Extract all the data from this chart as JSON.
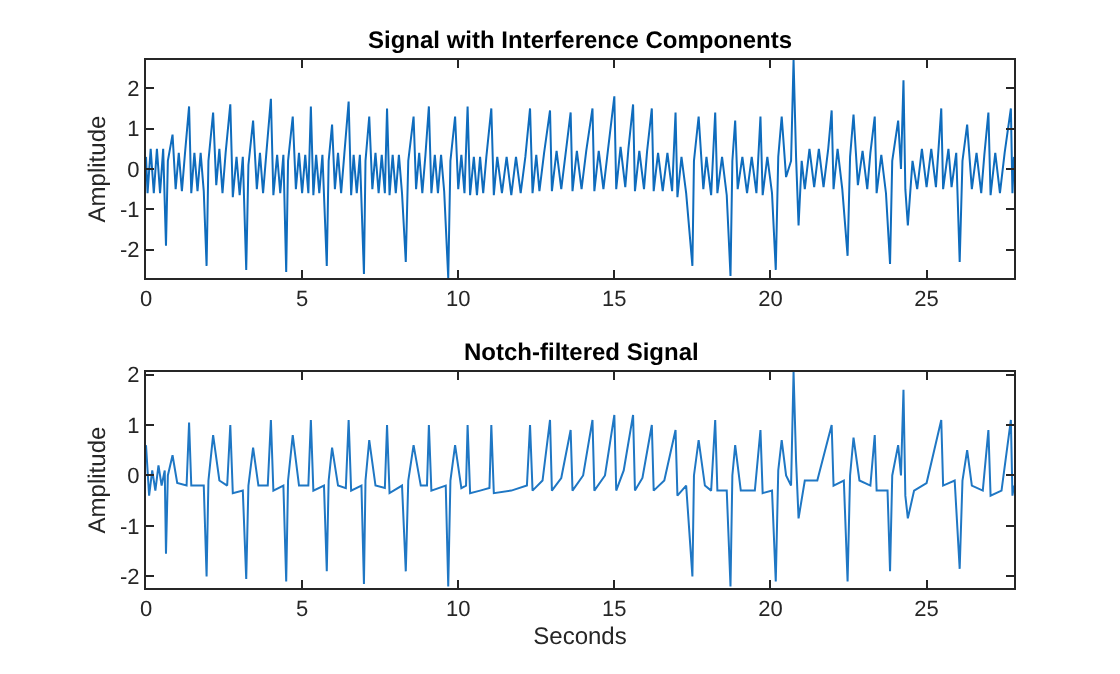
{
  "chart_data": [
    {
      "type": "line",
      "title": "Signal with Interference Components",
      "ylabel": "Amplitude",
      "xlim": [
        0,
        27.8
      ],
      "ylim": [
        -2.7,
        2.7
      ],
      "xticks": [
        0,
        5,
        10,
        15,
        20,
        25
      ],
      "yticks": [
        -2,
        -1,
        0,
        1,
        2
      ],
      "series": [
        {
          "color": "#0f6cbd",
          "x": [
            0,
            0.05,
            0.15,
            0.25,
            0.35,
            0.45,
            0.55,
            0.64,
            0.7,
            0.85,
            0.95,
            1.05,
            1.15,
            1.25,
            1.38,
            1.45,
            1.55,
            1.65,
            1.75,
            1.85,
            1.94,
            2.0,
            2.15,
            2.25,
            2.35,
            2.45,
            2.55,
            2.7,
            2.78,
            2.9,
            3.0,
            3.1,
            3.21,
            3.28,
            3.43,
            3.55,
            3.65,
            3.75,
            3.85,
            4.0,
            4.08,
            4.2,
            4.3,
            4.4,
            4.49,
            4.55,
            4.7,
            4.8,
            4.9,
            5.0,
            5.1,
            5.2,
            5.28,
            5.36,
            5.45,
            5.55,
            5.65,
            5.79,
            5.85,
            5.96,
            6.05,
            6.15,
            6.25,
            6.35,
            6.49,
            6.57,
            6.65,
            6.75,
            6.85,
            6.98,
            7.03,
            7.15,
            7.25,
            7.35,
            7.45,
            7.55,
            7.65,
            7.72,
            7.8,
            7.9,
            8.0,
            8.1,
            8.2,
            8.32,
            8.4,
            8.57,
            8.65,
            8.75,
            8.85,
            8.95,
            9.06,
            9.14,
            9.25,
            9.35,
            9.45,
            9.55,
            9.68,
            9.75,
            9.9,
            10.0,
            10.1,
            10.2,
            10.3,
            10.38,
            10.5,
            10.6,
            10.7,
            10.8,
            10.9,
            11.06,
            11.14,
            11.25,
            11.4,
            11.55,
            11.7,
            11.85,
            12.0,
            12.15,
            12.3,
            12.38,
            12.5,
            12.6,
            12.75,
            12.94,
            13.0,
            13.15,
            13.3,
            13.45,
            13.6,
            13.66,
            13.8,
            13.95,
            14.1,
            14.3,
            14.36,
            14.5,
            14.65,
            14.8,
            15.0,
            15.06,
            15.2,
            15.35,
            15.45,
            15.6,
            15.66,
            15.8,
            15.95,
            16.05,
            16.2,
            16.26,
            16.4,
            16.55,
            16.7,
            16.85,
            16.96,
            17.02,
            17.15,
            17.3,
            17.5,
            17.55,
            17.7,
            17.85,
            17.95,
            18.1,
            18.23,
            18.3,
            18.45,
            18.6,
            18.72,
            18.78,
            18.87,
            18.95,
            19.1,
            19.25,
            19.4,
            19.55,
            19.68,
            19.75,
            19.9,
            20.05,
            20.17,
            20.25,
            20.36,
            20.5,
            20.66,
            20.74,
            20.82,
            20.9,
            21.0,
            21.1,
            21.25,
            21.4,
            21.55,
            21.7,
            21.85,
            21.96,
            22.02,
            22.15,
            22.3,
            22.47,
            22.55,
            22.66,
            22.8,
            22.95,
            23.1,
            23.2,
            23.34,
            23.4,
            23.55,
            23.7,
            23.83,
            23.9,
            24.09,
            24.18,
            24.26,
            24.32,
            24.4,
            24.55,
            24.7,
            24.85,
            25.0,
            25.15,
            25.3,
            25.47,
            25.53,
            25.7,
            25.8,
            25.95,
            26.06,
            26.15,
            26.3,
            26.45,
            26.6,
            26.75,
            26.85,
            26.98,
            27.05,
            27.2,
            27.35,
            27.5,
            27.7,
            27.75,
            27.8
          ],
          "values": [
            0.3,
            -0.6,
            0.5,
            -0.6,
            0.5,
            -0.6,
            0.5,
            -1.9,
            0.2,
            0.85,
            -0.5,
            0.4,
            -0.55,
            0.4,
            1.55,
            -0.6,
            0.4,
            -0.55,
            0.4,
            -0.55,
            -2.4,
            0.2,
            1.4,
            -0.4,
            0.5,
            -0.6,
            0.4,
            1.6,
            -0.7,
            0.3,
            -0.65,
            0.3,
            -2.5,
            0.1,
            1.2,
            -0.5,
            0.4,
            -0.6,
            0.35,
            1.74,
            -0.65,
            0.35,
            -0.6,
            0.35,
            -2.55,
            0.2,
            1.3,
            -0.5,
            0.4,
            -0.6,
            0.35,
            -0.6,
            1.55,
            -0.65,
            0.35,
            -0.6,
            0.35,
            -2.4,
            0.2,
            1.1,
            -0.5,
            0.4,
            -0.6,
            0.35,
            1.67,
            -0.65,
            0.35,
            -0.6,
            0.35,
            -2.6,
            0.2,
            1.3,
            -0.5,
            0.4,
            -0.6,
            0.35,
            -0.6,
            1.5,
            -0.65,
            0.35,
            -0.6,
            0.35,
            -0.6,
            -2.3,
            0.2,
            1.3,
            -0.5,
            0.4,
            -0.6,
            0.35,
            1.55,
            -0.6,
            0.35,
            -0.6,
            0.35,
            -0.55,
            -2.7,
            0.2,
            1.3,
            -0.5,
            0.35,
            -0.6,
            1.55,
            -0.65,
            0.3,
            -0.65,
            0.3,
            -0.6,
            0.3,
            1.5,
            -0.65,
            0.3,
            -0.6,
            0.3,
            -0.65,
            0.3,
            -0.6,
            0.3,
            1.5,
            -0.6,
            0.35,
            -0.55,
            0.4,
            1.45,
            -0.55,
            0.45,
            -0.5,
            0.45,
            1.4,
            -0.55,
            0.45,
            -0.5,
            0.45,
            1.5,
            -0.55,
            0.45,
            -0.5,
            0.5,
            1.8,
            -0.5,
            0.55,
            -0.45,
            0.5,
            1.6,
            -0.55,
            0.45,
            -0.5,
            0.45,
            1.5,
            -0.55,
            0.4,
            -0.55,
            0.4,
            -0.55,
            1.4,
            -0.7,
            0.3,
            -0.6,
            -2.4,
            0.2,
            1.3,
            -0.5,
            0.3,
            -0.65,
            1.4,
            -0.6,
            0.3,
            -0.65,
            -2.65,
            0.2,
            1.2,
            -0.5,
            0.3,
            -0.6,
            0.3,
            -0.6,
            1.3,
            -0.65,
            0.3,
            -0.6,
            -2.5,
            0.3,
            1.3,
            -0.2,
            0.2,
            2.7,
            0.3,
            -1.4,
            0.2,
            -0.5,
            0.5,
            -0.45,
            0.5,
            -0.45,
            0.5,
            1.45,
            -0.5,
            0.5,
            -0.5,
            -2.15,
            0.3,
            1.35,
            -0.4,
            0.45,
            -0.5,
            0.4,
            1.3,
            -0.6,
            0.35,
            -0.6,
            -2.35,
            0.2,
            1.2,
            0.0,
            2.2,
            -0.5,
            -1.4,
            0.2,
            -0.5,
            0.5,
            -0.45,
            0.5,
            -0.45,
            1.5,
            -0.5,
            0.5,
            -0.45,
            0.4,
            -2.3,
            0.2,
            1.1,
            -0.5,
            0.4,
            -0.6,
            0.35,
            1.4,
            -0.65,
            0.4,
            -0.6,
            0.4,
            1.5,
            -0.6,
            0.3
          ]
        }
      ]
    },
    {
      "type": "line",
      "title": "Notch-filtered Signal",
      "xlabel": "Seconds",
      "ylabel": "Amplitude",
      "xlim": [
        0,
        27.8
      ],
      "ylim": [
        -2.23,
        2.05
      ],
      "xticks": [
        0,
        5,
        10,
        15,
        20,
        25
      ],
      "yticks": [
        -2,
        -1,
        0,
        1,
        2
      ],
      "series": [
        {
          "color": "#1f77c4",
          "x": [
            0,
            0.1,
            0.2,
            0.3,
            0.4,
            0.5,
            0.6,
            0.64,
            0.7,
            0.85,
            1.0,
            1.3,
            1.38,
            1.45,
            1.85,
            1.94,
            2.0,
            2.15,
            2.35,
            2.6,
            2.7,
            2.78,
            3.1,
            3.21,
            3.28,
            3.43,
            3.6,
            3.9,
            4.0,
            4.08,
            4.4,
            4.49,
            4.55,
            4.7,
            4.9,
            5.2,
            5.28,
            5.36,
            5.7,
            5.79,
            5.85,
            5.96,
            6.15,
            6.4,
            6.49,
            6.57,
            6.9,
            6.98,
            7.03,
            7.15,
            7.35,
            7.65,
            7.72,
            7.8,
            8.2,
            8.32,
            8.4,
            8.57,
            8.8,
            9.0,
            9.06,
            9.14,
            9.6,
            9.68,
            9.75,
            9.9,
            10.1,
            10.25,
            10.3,
            10.38,
            10.7,
            11.0,
            11.06,
            11.14,
            11.7,
            12.2,
            12.3,
            12.38,
            12.7,
            12.94,
            13.0,
            13.3,
            13.6,
            13.66,
            14.0,
            14.3,
            14.36,
            14.7,
            15.0,
            15.06,
            15.3,
            15.6,
            15.66,
            15.9,
            16.2,
            16.26,
            16.6,
            16.96,
            17.02,
            17.3,
            17.5,
            17.55,
            17.7,
            17.9,
            18.1,
            18.23,
            18.3,
            18.6,
            18.72,
            18.78,
            18.87,
            19.05,
            19.5,
            19.68,
            19.75,
            20.05,
            20.17,
            20.25,
            20.36,
            20.5,
            20.66,
            20.74,
            20.82,
            20.9,
            21.1,
            21.5,
            21.96,
            22.02,
            22.35,
            22.47,
            22.55,
            22.66,
            22.85,
            23.2,
            23.34,
            23.4,
            23.75,
            23.83,
            23.9,
            24.09,
            24.18,
            24.26,
            24.32,
            24.4,
            24.6,
            25.0,
            25.47,
            25.53,
            25.9,
            26.06,
            26.15,
            26.3,
            26.45,
            26.8,
            26.98,
            27.05,
            27.4,
            27.7,
            27.75,
            27.8
          ],
          "values": [
            0.6,
            -0.4,
            0.1,
            -0.3,
            0.2,
            -0.2,
            0.1,
            -1.55,
            0.0,
            0.4,
            -0.15,
            -0.2,
            1.05,
            -0.2,
            -0.2,
            -2.0,
            -0.1,
            0.8,
            -0.1,
            -0.2,
            1.0,
            -0.35,
            -0.3,
            -2.05,
            -0.2,
            0.55,
            -0.2,
            -0.2,
            1.1,
            -0.3,
            -0.2,
            -2.1,
            -0.1,
            0.8,
            -0.2,
            -0.2,
            1.1,
            -0.3,
            -0.2,
            -1.9,
            -0.1,
            0.55,
            -0.2,
            -0.25,
            1.1,
            -0.3,
            -0.2,
            -2.15,
            -0.1,
            0.7,
            -0.2,
            -0.25,
            1.0,
            -0.35,
            -0.2,
            -1.9,
            -0.1,
            0.6,
            -0.2,
            -0.2,
            1.0,
            -0.3,
            -0.2,
            -2.2,
            -0.1,
            0.6,
            -0.25,
            -0.2,
            1.0,
            -0.35,
            -0.3,
            -0.25,
            1.0,
            -0.35,
            -0.3,
            -0.2,
            1.0,
            -0.3,
            -0.1,
            1.1,
            -0.3,
            -0.05,
            0.9,
            -0.3,
            0.0,
            1.1,
            -0.3,
            0.0,
            1.2,
            -0.3,
            0.1,
            1.2,
            -0.3,
            -0.05,
            1.0,
            -0.3,
            -0.1,
            0.9,
            -0.4,
            -0.2,
            -2.0,
            0.0,
            0.7,
            -0.2,
            -0.3,
            1.1,
            -0.3,
            -0.3,
            -2.2,
            0.0,
            0.6,
            -0.3,
            -0.3,
            0.9,
            -0.35,
            -0.3,
            -2.1,
            0.1,
            0.7,
            0.0,
            -0.2,
            2.05,
            0.3,
            -0.85,
            -0.1,
            -0.1,
            1.0,
            -0.2,
            -0.1,
            -2.1,
            0.0,
            0.75,
            -0.1,
            -0.2,
            0.8,
            -0.3,
            -0.3,
            -1.9,
            0.0,
            0.6,
            0.0,
            1.7,
            -0.4,
            -0.85,
            -0.3,
            -0.15,
            1.1,
            -0.2,
            -0.1,
            -1.85,
            -0.1,
            0.5,
            -0.2,
            -0.3,
            0.9,
            -0.4,
            -0.3,
            1.1,
            -0.4,
            -0.2
          ]
        }
      ]
    }
  ]
}
